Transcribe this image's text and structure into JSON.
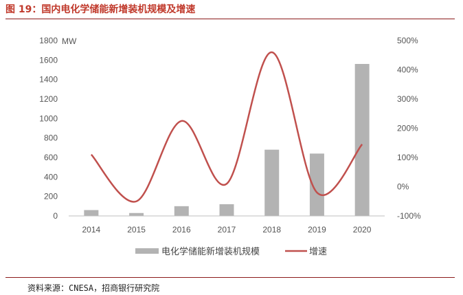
{
  "title": "图 19：国内电化学储能新增装机规模及增速",
  "source": "资料来源：CNESA，招商银行研究院",
  "chart_data": {
    "type": "bar",
    "categories": [
      "2014",
      "2015",
      "2016",
      "2017",
      "2018",
      "2019",
      "2020"
    ],
    "ylabel": "MW",
    "ylim": [
      0,
      1800
    ],
    "y_ticks": [
      "1800",
      "1600",
      "1400",
      "1200",
      "1000",
      "800",
      "600",
      "400",
      "200",
      "0"
    ],
    "y2lim": [
      -100,
      500
    ],
    "y2_ticks": [
      "500%",
      "400%",
      "300%",
      "200%",
      "100%",
      "0%",
      "-100%"
    ],
    "series": [
      {
        "name": "电化学储能新增装机规模",
        "type": "bar",
        "axis": "left",
        "color": "#b3b3b3",
        "values": [
          60,
          30,
          100,
          120,
          680,
          640,
          1560
        ]
      },
      {
        "name": "增速",
        "type": "line",
        "axis": "right",
        "color": "#c0504d",
        "values": [
          110,
          -50,
          225,
          10,
          460,
          -20,
          145
        ]
      }
    ],
    "legend_position": "bottom",
    "grid": false
  }
}
